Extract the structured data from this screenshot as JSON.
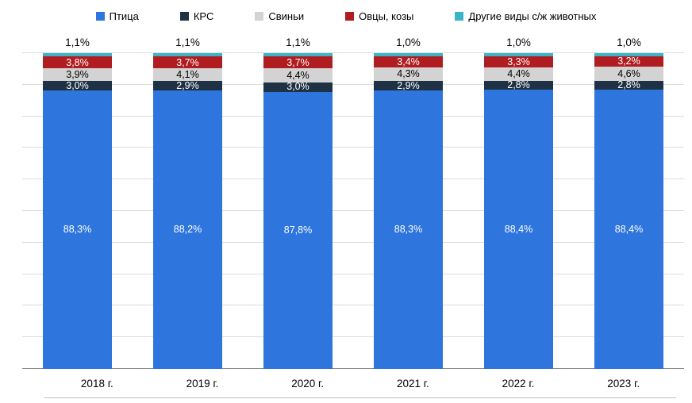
{
  "chart_data": {
    "type": "bar",
    "stacked": true,
    "unit": "%",
    "grid": true,
    "grid_step": 10,
    "ylim": [
      0,
      100
    ],
    "legend_position": "top",
    "categories": [
      "2018 г.",
      "2019 г.",
      "2020 г.",
      "2021 г.",
      "2022 г.",
      "2023 г."
    ],
    "series": [
      {
        "name": "Птица",
        "color": "#2e75dd",
        "label_color": "#ffffff",
        "values": [
          88.3,
          88.2,
          87.8,
          88.3,
          88.4,
          88.4
        ],
        "labels": [
          "88,3%",
          "88,2%",
          "87,8%",
          "88,3%",
          "88,4%",
          "88,4%"
        ]
      },
      {
        "name": "КРС",
        "color": "#1f3245",
        "label_color": "#ffffff",
        "values": [
          3.0,
          2.9,
          3.0,
          2.9,
          2.8,
          2.8
        ],
        "labels": [
          "3,0%",
          "2,9%",
          "3,0%",
          "2,9%",
          "2,8%",
          "2,8%"
        ]
      },
      {
        "name": "Свиньи",
        "color": "#d3d3d3",
        "label_color": "#000000",
        "values": [
          3.9,
          4.1,
          4.4,
          4.3,
          4.4,
          4.6
        ],
        "labels": [
          "3,9%",
          "4,1%",
          "4,4%",
          "4,3%",
          "4,4%",
          "4,6%"
        ]
      },
      {
        "name": "Овцы, козы",
        "color": "#b01c1f",
        "label_color": "#ffffff",
        "values": [
          3.8,
          3.7,
          3.7,
          3.4,
          3.3,
          3.2
        ],
        "labels": [
          "3,8%",
          "3,7%",
          "3,7%",
          "3,4%",
          "3,3%",
          "3,2%"
        ]
      },
      {
        "name": "Другие виды с/ж животных",
        "color": "#3cb4c7",
        "label_color": "#000000",
        "label_position": "above",
        "values": [
          1.1,
          1.1,
          1.1,
          1.0,
          1.0,
          1.0
        ],
        "labels": [
          "1,1%",
          "1,1%",
          "1,1%",
          "1,0%",
          "1,0%",
          "1,0%"
        ]
      }
    ]
  }
}
